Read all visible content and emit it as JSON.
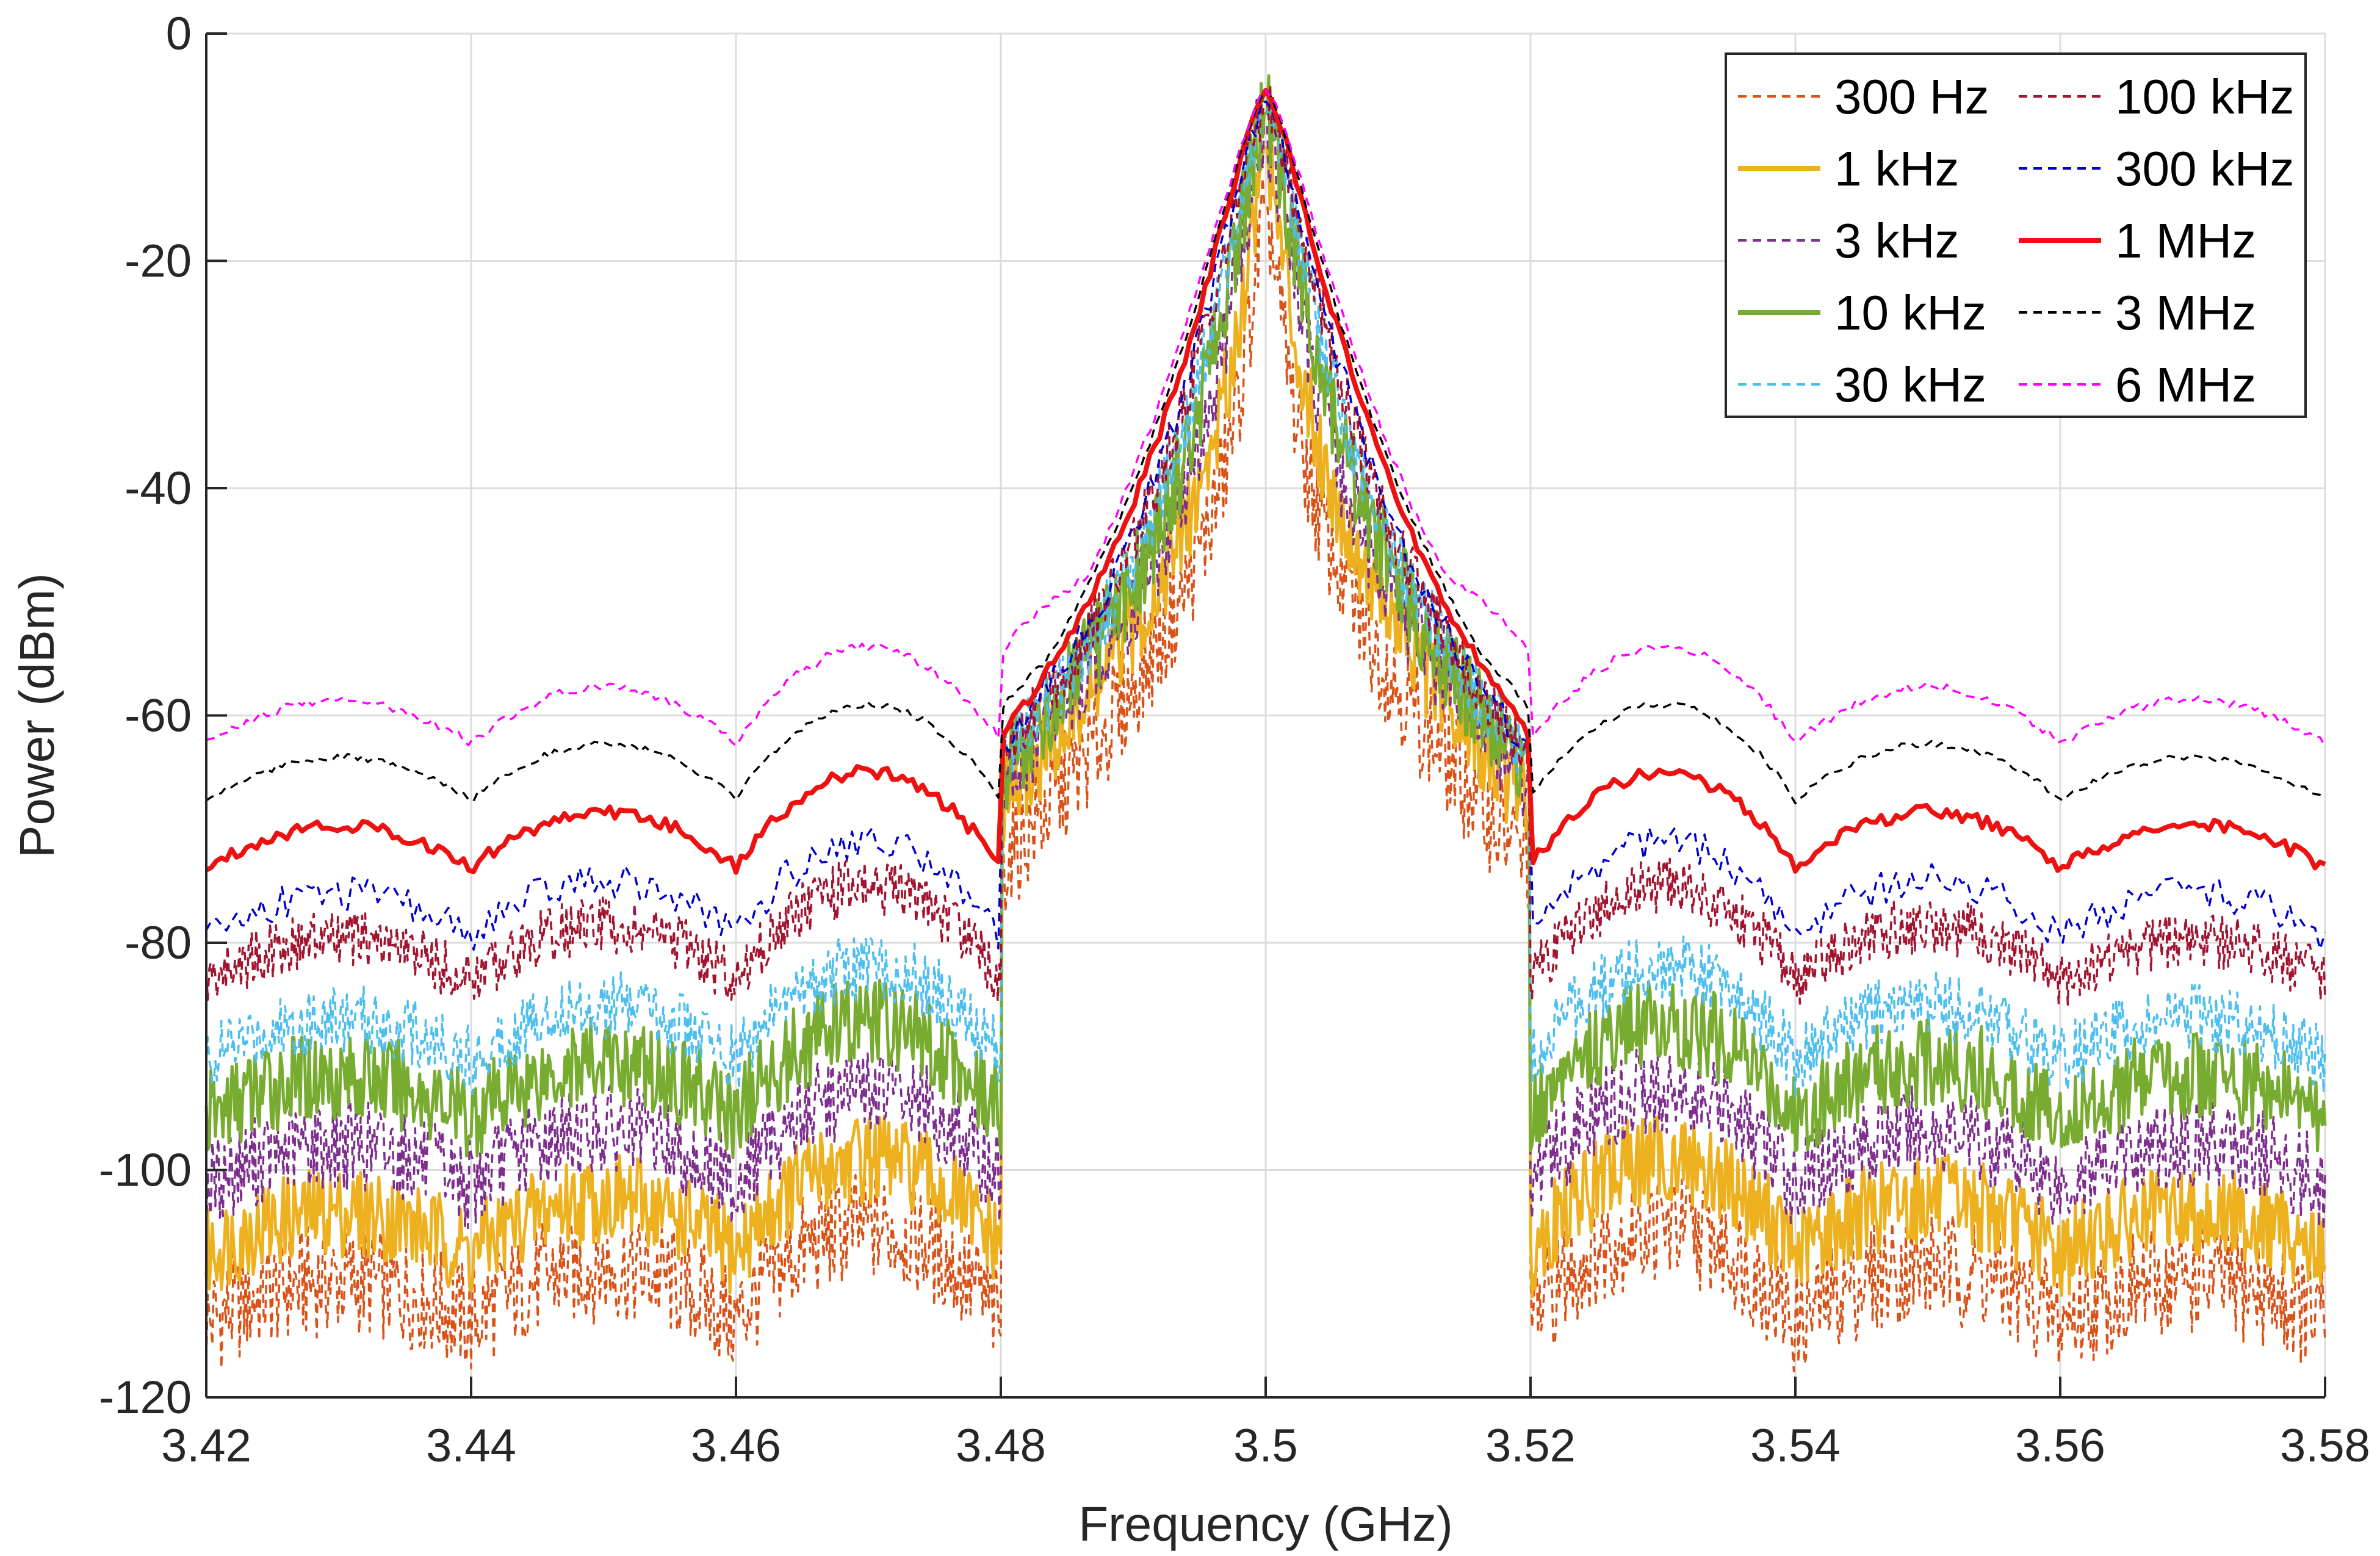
{
  "chart_data": {
    "type": "line",
    "xlabel": "Frequency (GHz)",
    "ylabel": "Power (dBm)",
    "xlim": [
      3.42,
      3.58
    ],
    "ylim": [
      -120,
      0
    ],
    "x_ticks": [
      "3.42",
      "3.44",
      "3.46",
      "3.48",
      "3.5",
      "3.52",
      "3.54",
      "3.56",
      "3.58"
    ],
    "y_ticks": [
      "0",
      "-20",
      "-40",
      "-60",
      "-80",
      "-100",
      "-120"
    ],
    "grid": true,
    "legend_position": "top-right",
    "center_frequency": 3.5,
    "sidelobe_nulls": [
      3.44,
      3.46,
      3.48,
      3.52,
      3.54,
      3.56
    ],
    "series": [
      {
        "name": "300 Hz",
        "color": "#D95319",
        "dash": "dashed",
        "floor": -112,
        "peak": -15,
        "fill_noise": 5
      },
      {
        "name": "1 kHz",
        "color": "#EDB120",
        "dash": "solid",
        "floor": -106,
        "peak": -10,
        "fill_noise": 4
      },
      {
        "name": "3 kHz",
        "color": "#7E2F8E",
        "dash": "dashed",
        "floor": -100,
        "peak": -8,
        "fill_noise": 4
      },
      {
        "name": "10 kHz",
        "color": "#77AC30",
        "dash": "solid",
        "floor": -94,
        "peak": -7,
        "fill_noise": 4
      },
      {
        "name": "30 kHz",
        "color": "#4DBEEE",
        "dash": "dashed",
        "floor": -89,
        "peak": -6,
        "fill_noise": 3
      },
      {
        "name": "100 kHz",
        "color": "#A2142F",
        "dash": "dashed",
        "floor": -82,
        "peak": -6,
        "fill_noise": 2.5
      },
      {
        "name": "300 kHz",
        "color": "#0000CC",
        "dash": "dashed",
        "floor": -78,
        "peak": -6,
        "fill_noise": 1.5
      },
      {
        "name": "1 MHz",
        "color": "#EE1111",
        "dash": "solid",
        "floor": -72,
        "peak": -5,
        "fill_noise": 0.6
      },
      {
        "name": "3 MHz",
        "color": "#000000",
        "dash": "dashed",
        "floor": -66,
        "peak": -5,
        "fill_noise": 0.3
      },
      {
        "name": "6 MHz",
        "color": "#FF00FF",
        "dash": "dashed",
        "floor": -61,
        "peak": -5,
        "fill_noise": 0.4
      }
    ]
  }
}
